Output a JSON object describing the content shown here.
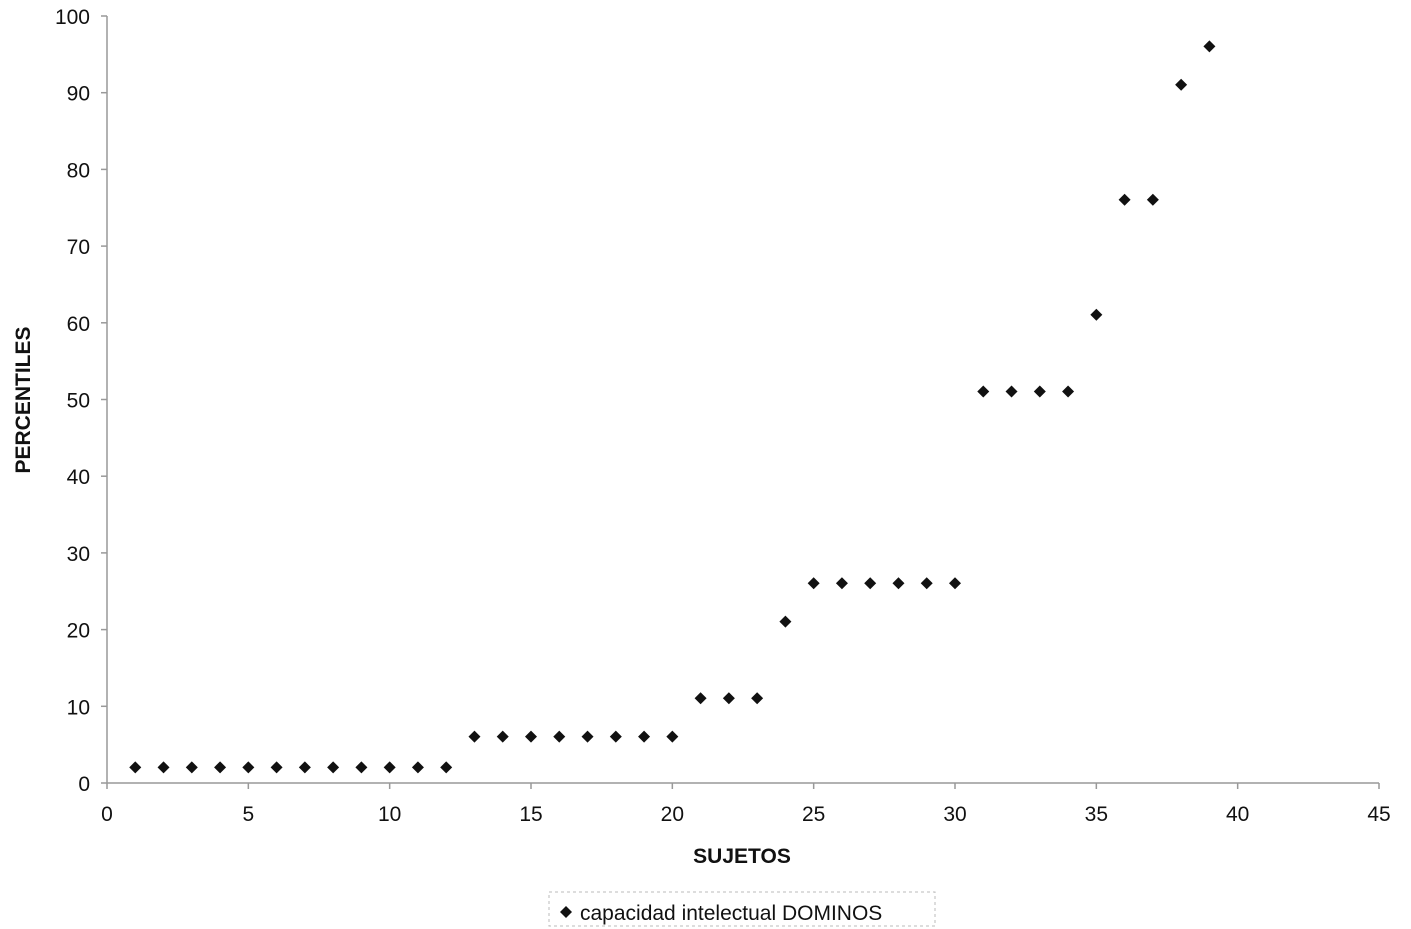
{
  "chart_data": {
    "type": "scatter",
    "title": "",
    "xlabel": "SUJETOS",
    "ylabel": "PERCENTILES",
    "xlim": [
      0,
      45
    ],
    "ylim": [
      0,
      100
    ],
    "x_ticks": [
      0,
      5,
      10,
      15,
      20,
      25,
      30,
      35,
      40,
      45
    ],
    "y_ticks": [
      0,
      10,
      20,
      30,
      40,
      50,
      60,
      70,
      80,
      90,
      100
    ],
    "grid": false,
    "legend_position": "bottom",
    "marker": "diamond",
    "colors": {
      "marker": "#111111",
      "axis": "#999999",
      "background": "#ffffff"
    },
    "series": [
      {
        "name": "capacidad intelectual DOMINOS",
        "x": [
          1,
          2,
          3,
          4,
          5,
          6,
          7,
          8,
          9,
          10,
          11,
          12,
          13,
          14,
          15,
          16,
          17,
          18,
          19,
          20,
          21,
          22,
          23,
          24,
          25,
          26,
          27,
          28,
          29,
          30,
          31,
          32,
          33,
          34,
          35,
          36,
          37,
          38,
          39
        ],
        "y": [
          1,
          1,
          1,
          1,
          1,
          1,
          1,
          1,
          1,
          1,
          1,
          1,
          5,
          5,
          5,
          5,
          5,
          5,
          5,
          5,
          10,
          10,
          10,
          20,
          25,
          25,
          25,
          25,
          25,
          25,
          50,
          50,
          50,
          50,
          60,
          75,
          75,
          90,
          95
        ]
      }
    ]
  }
}
